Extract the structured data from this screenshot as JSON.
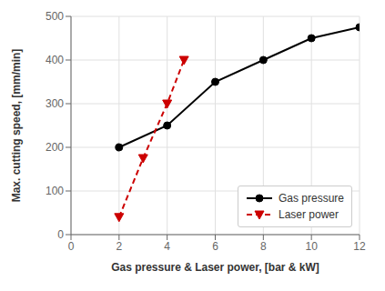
{
  "chart_data": {
    "type": "line",
    "xlabel": "Gas pressure & Laser power, [bar & kW]",
    "ylabel": "Max. cutting speed, [mm/min]",
    "series": [
      {
        "name": "Gas pressure",
        "color": "#000000",
        "marker": "circle",
        "line_style": "solid",
        "x": [
          2,
          4,
          6,
          8,
          10,
          12
        ],
        "values": [
          200,
          250,
          350,
          400,
          450,
          475
        ]
      },
      {
        "name": "Laser power",
        "color": "#cc0000",
        "marker": "triangle-down",
        "line_style": "dashed",
        "x": [
          2,
          3,
          4,
          4.7
        ],
        "values": [
          40,
          175,
          300,
          400
        ]
      }
    ],
    "xlim": [
      0,
      12
    ],
    "ylim": [
      0,
      500
    ],
    "xticks": [
      0,
      2,
      4,
      6,
      8,
      10,
      12
    ],
    "yticks": [
      0,
      100,
      200,
      300,
      400,
      500
    ],
    "grid": true,
    "legend": "lower right"
  }
}
